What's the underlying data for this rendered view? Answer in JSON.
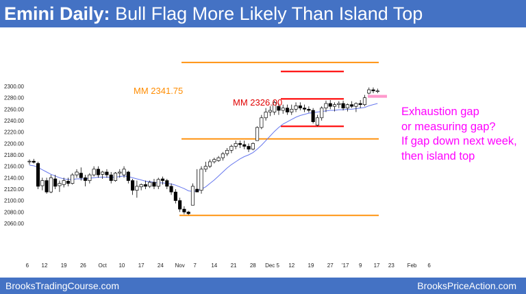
{
  "header": {
    "title_bold": "Emini Daily:",
    "title_rest": "Bull Flag More Likely Than Island Top",
    "background": "#4472c4"
  },
  "footer": {
    "left": "BrooksTradingCourse.com",
    "right": "BrooksPriceAction.com"
  },
  "annotations": {
    "note_lines": [
      "Exhaustion gap",
      "or measuring gap?",
      "If gap down next week,",
      "then island top"
    ],
    "note_color": "#ff00ff",
    "mm_2341": "MM 2341.75",
    "mm_2326": "MM 2326.00"
  },
  "chart_data": {
    "type": "candlestick",
    "title": "Emini Daily: Bull Flag More Likely Than Island Top",
    "y_ticks": [
      "2060.00",
      "2080.00",
      "2100.00",
      "2120.00",
      "2140.00",
      "2160.00",
      "2180.00",
      "2200.00",
      "2220.00",
      "2240.00",
      "2260.00",
      "2280.00",
      "2300.00"
    ],
    "ylim": [
      2060,
      2300
    ],
    "x_ticks": [
      "6",
      "12",
      "19",
      "26",
      "Oct",
      "10",
      "17",
      "24",
      "Nov",
      "7",
      "14",
      "21",
      "28",
      "Dec 5",
      "12",
      "19",
      "27",
      "'17",
      "9",
      "17",
      "23",
      "Feb",
      "6"
    ],
    "bars": [
      {
        "o": 2168,
        "h": 2172,
        "l": 2163,
        "c": 2169
      },
      {
        "o": 2169,
        "h": 2173,
        "l": 2165,
        "c": 2167
      },
      {
        "o": 2165,
        "h": 2168,
        "l": 2120,
        "c": 2125
      },
      {
        "o": 2126,
        "h": 2140,
        "l": 2118,
        "c": 2135
      },
      {
        "o": 2135,
        "h": 2140,
        "l": 2112,
        "c": 2115
      },
      {
        "o": 2115,
        "h": 2145,
        "l": 2113,
        "c": 2140
      },
      {
        "o": 2138,
        "h": 2145,
        "l": 2120,
        "c": 2125
      },
      {
        "o": 2126,
        "h": 2135,
        "l": 2115,
        "c": 2130
      },
      {
        "o": 2128,
        "h": 2140,
        "l": 2123,
        "c": 2135
      },
      {
        "o": 2134,
        "h": 2140,
        "l": 2125,
        "c": 2130
      },
      {
        "o": 2130,
        "h": 2148,
        "l": 2128,
        "c": 2145
      },
      {
        "o": 2145,
        "h": 2155,
        "l": 2140,
        "c": 2150
      },
      {
        "o": 2148,
        "h": 2158,
        "l": 2135,
        "c": 2140
      },
      {
        "o": 2140,
        "h": 2145,
        "l": 2125,
        "c": 2135
      },
      {
        "o": 2135,
        "h": 2148,
        "l": 2130,
        "c": 2145
      },
      {
        "o": 2145,
        "h": 2160,
        "l": 2142,
        "c": 2155
      },
      {
        "o": 2155,
        "h": 2160,
        "l": 2140,
        "c": 2145
      },
      {
        "o": 2146,
        "h": 2152,
        "l": 2138,
        "c": 2150
      },
      {
        "o": 2150,
        "h": 2155,
        "l": 2140,
        "c": 2145
      },
      {
        "o": 2145,
        "h": 2150,
        "l": 2130,
        "c": 2135
      },
      {
        "o": 2135,
        "h": 2150,
        "l": 2133,
        "c": 2148
      },
      {
        "o": 2148,
        "h": 2155,
        "l": 2140,
        "c": 2150
      },
      {
        "o": 2145,
        "h": 2160,
        "l": 2140,
        "c": 2155
      },
      {
        "o": 2150,
        "h": 2152,
        "l": 2130,
        "c": 2135
      },
      {
        "o": 2135,
        "h": 2138,
        "l": 2110,
        "c": 2118
      },
      {
        "o": 2118,
        "h": 2135,
        "l": 2105,
        "c": 2125
      },
      {
        "o": 2124,
        "h": 2130,
        "l": 2118,
        "c": 2128
      },
      {
        "o": 2128,
        "h": 2135,
        "l": 2120,
        "c": 2125
      },
      {
        "o": 2125,
        "h": 2135,
        "l": 2122,
        "c": 2132
      },
      {
        "o": 2132,
        "h": 2138,
        "l": 2120,
        "c": 2125
      },
      {
        "o": 2125,
        "h": 2140,
        "l": 2120,
        "c": 2137
      },
      {
        "o": 2138,
        "h": 2142,
        "l": 2128,
        "c": 2135
      },
      {
        "o": 2135,
        "h": 2138,
        "l": 2120,
        "c": 2125
      },
      {
        "o": 2125,
        "h": 2130,
        "l": 2110,
        "c": 2115
      },
      {
        "o": 2115,
        "h": 2120,
        "l": 2095,
        "c": 2100
      },
      {
        "o": 2100,
        "h": 2105,
        "l": 2080,
        "c": 2085
      },
      {
        "o": 2085,
        "h": 2090,
        "l": 2076,
        "c": 2080
      },
      {
        "o": 2080,
        "h": 2082,
        "l": 2075,
        "c": 2077
      },
      {
        "o": 2092,
        "h": 2130,
        "l": 2092,
        "c": 2125
      },
      {
        "o": 2120,
        "h": 2155,
        "l": 2115,
        "c": 2115
      },
      {
        "o": 2118,
        "h": 2160,
        "l": 2112,
        "c": 2155
      },
      {
        "o": 2155,
        "h": 2168,
        "l": 2150,
        "c": 2160
      },
      {
        "o": 2160,
        "h": 2172,
        "l": 2157,
        "c": 2168
      },
      {
        "o": 2168,
        "h": 2175,
        "l": 2165,
        "c": 2172
      },
      {
        "o": 2170,
        "h": 2178,
        "l": 2168,
        "c": 2175
      },
      {
        "o": 2175,
        "h": 2185,
        "l": 2170,
        "c": 2182
      },
      {
        "o": 2182,
        "h": 2192,
        "l": 2178,
        "c": 2188
      },
      {
        "o": 2188,
        "h": 2198,
        "l": 2183,
        "c": 2195
      },
      {
        "o": 2195,
        "h": 2205,
        "l": 2190,
        "c": 2200
      },
      {
        "o": 2200,
        "h": 2205,
        "l": 2192,
        "c": 2198
      },
      {
        "o": 2198,
        "h": 2205,
        "l": 2190,
        "c": 2195
      },
      {
        "o": 2195,
        "h": 2200,
        "l": 2185,
        "c": 2190
      },
      {
        "o": 2190,
        "h": 2202,
        "l": 2188,
        "c": 2200
      },
      {
        "o": 2205,
        "h": 2230,
        "l": 2205,
        "c": 2228
      },
      {
        "o": 2228,
        "h": 2250,
        "l": 2225,
        "c": 2245
      },
      {
        "o": 2245,
        "h": 2262,
        "l": 2240,
        "c": 2255
      },
      {
        "o": 2255,
        "h": 2265,
        "l": 2248,
        "c": 2258
      },
      {
        "o": 2255,
        "h": 2275,
        "l": 2250,
        "c": 2272
      },
      {
        "o": 2265,
        "h": 2270,
        "l": 2250,
        "c": 2258
      },
      {
        "o": 2258,
        "h": 2268,
        "l": 2252,
        "c": 2262
      },
      {
        "o": 2262,
        "h": 2268,
        "l": 2250,
        "c": 2255
      },
      {
        "o": 2255,
        "h": 2268,
        "l": 2250,
        "c": 2260
      },
      {
        "o": 2260,
        "h": 2272,
        "l": 2255,
        "c": 2266
      },
      {
        "o": 2266,
        "h": 2272,
        "l": 2258,
        "c": 2262
      },
      {
        "o": 2262,
        "h": 2268,
        "l": 2255,
        "c": 2260
      },
      {
        "o": 2260,
        "h": 2265,
        "l": 2254,
        "c": 2258
      },
      {
        "o": 2258,
        "h": 2262,
        "l": 2235,
        "c": 2238
      },
      {
        "o": 2232,
        "h": 2250,
        "l": 2230,
        "c": 2245
      },
      {
        "o": 2245,
        "h": 2265,
        "l": 2240,
        "c": 2262
      },
      {
        "o": 2262,
        "h": 2275,
        "l": 2255,
        "c": 2270
      },
      {
        "o": 2270,
        "h": 2276,
        "l": 2260,
        "c": 2265
      },
      {
        "o": 2265,
        "h": 2272,
        "l": 2256,
        "c": 2268
      },
      {
        "o": 2268,
        "h": 2274,
        "l": 2262,
        "c": 2270
      },
      {
        "o": 2270,
        "h": 2275,
        "l": 2258,
        "c": 2262
      },
      {
        "o": 2262,
        "h": 2270,
        "l": 2256,
        "c": 2268
      },
      {
        "o": 2268,
        "h": 2274,
        "l": 2262,
        "c": 2265
      },
      {
        "o": 2265,
        "h": 2272,
        "l": 2255,
        "c": 2270
      },
      {
        "o": 2270,
        "h": 2276,
        "l": 2262,
        "c": 2268
      },
      {
        "o": 2268,
        "h": 2285,
        "l": 2265,
        "c": 2280
      },
      {
        "o": 2288,
        "h": 2298,
        "l": 2286,
        "c": 2294
      },
      {
        "o": 2294,
        "h": 2298,
        "l": 2288,
        "c": 2292
      },
      {
        "o": 2292,
        "h": 2296,
        "l": 2288,
        "c": 2292
      }
    ],
    "ma": [
      2162,
      2161,
      2158,
      2154,
      2150,
      2146,
      2143,
      2140,
      2138,
      2137,
      2137,
      2138,
      2138,
      2138,
      2139,
      2140,
      2141,
      2141,
      2141,
      2141,
      2141,
      2142,
      2143,
      2142,
      2140,
      2138,
      2136,
      2134,
      2133,
      2132,
      2131,
      2131,
      2130,
      2129,
      2127,
      2124,
      2121,
      2117,
      2116,
      2117,
      2120,
      2124,
      2130,
      2136,
      2143,
      2150,
      2157,
      2163,
      2168,
      2173,
      2177,
      2180,
      2184,
      2190,
      2197,
      2205,
      2213,
      2221,
      2228,
      2234,
      2238,
      2242,
      2246,
      2249,
      2251,
      2253,
      2254,
      2255,
      2256,
      2257,
      2258,
      2258,
      2259,
      2259,
      2260,
      2260,
      2261,
      2262,
      2263,
      2266,
      2268,
      2270
    ],
    "ma_color": "#6677ee",
    "bull_color": "#ffffff",
    "bear_color": "#000000",
    "lines": [
      {
        "name": "mm-2341-line",
        "y": 2341.75,
        "x_from_bar": 21,
        "x_to_bar": 82,
        "color": "#ff8c00"
      },
      {
        "name": "mm-2326-line",
        "y": 2326.0,
        "x_from_bar": 56,
        "x_to_bar": 71,
        "color": "#ff0000"
      },
      {
        "name": "range-top-line",
        "y": 2278.0,
        "x_from_bar": 56,
        "x_to_bar": 71,
        "color": "#ff0000"
      },
      {
        "name": "range-bottom-line",
        "y": 2230.0,
        "x_from_bar": 56,
        "x_to_bar": 71,
        "color": "#ff0000"
      },
      {
        "name": "breakout-level-line",
        "y": 2208.0,
        "x_from_bar": 36,
        "x_to_bar": 82,
        "color": "#ff8c00"
      },
      {
        "name": "low-level-line",
        "y": 2074.0,
        "x_from_bar": 38,
        "x_to_bar": 82,
        "color": "#ff8c00"
      }
    ],
    "gap_box": {
      "from": 2280,
      "to": 2285,
      "color": "#ff99cc"
    }
  }
}
